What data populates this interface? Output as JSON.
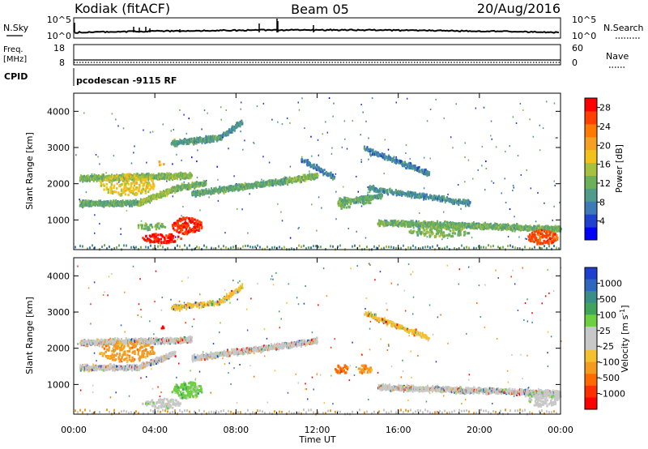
{
  "header": {
    "station": "Kodiak (fitACF)",
    "beam": "Beam 05",
    "date": "20/Aug/2016"
  },
  "top_panels": {
    "nsky_label": "N.Sky",
    "nsearch_label": "N.Search",
    "noise_ticks": [
      "10^5",
      "10^0"
    ],
    "freq_label_line1": "Freq.",
    "freq_label_line2": "[MHz]",
    "freq_ticks": [
      "18",
      "8"
    ],
    "nave_label": "Nave",
    "nave_ticks": [
      "60",
      "0"
    ],
    "cpid_label": "CPID",
    "cpid_text": "pcodescan -9115 RF"
  },
  "chart_data": [
    {
      "type": "heatmap",
      "title": "",
      "xlabel": "",
      "ylabel": "Slant Range [km]",
      "xlim": [
        0,
        24
      ],
      "ylim": [
        180,
        4500
      ],
      "x_ticks": [
        "00:00",
        "04:00",
        "08:00",
        "12:00",
        "16:00",
        "20:00",
        "00:00"
      ],
      "y_ticks": [
        "1000",
        "2000",
        "3000",
        "4000"
      ],
      "colorbar": {
        "label": "Power [dB]",
        "ticks": [
          "4",
          "8",
          "12",
          "16",
          "20",
          "24",
          "28"
        ],
        "range": [
          0,
          30
        ],
        "colors": [
          "#0000ff",
          "#2040d0",
          "#3e7ab8",
          "#4f9b8c",
          "#6cb05a",
          "#a8c040",
          "#f2c21a",
          "#f5a020",
          "#ff7a00",
          "#ff4000",
          "#ff0000"
        ]
      },
      "features": [
        {
          "t": 0.3,
          "t2": 5.8,
          "r": 2180,
          "r2": 2250,
          "val": 13,
          "d": 0.75
        },
        {
          "t": 5.8,
          "t2": 10.5,
          "r": 1750,
          "r2": 2120,
          "val": 11,
          "d": 0.65
        },
        {
          "t": 10.5,
          "t2": 12.0,
          "r": 2100,
          "r2": 2250,
          "val": 13,
          "d": 0.7
        },
        {
          "t": 0.3,
          "t2": 3.2,
          "r": 1480,
          "r2": 1500,
          "val": 11,
          "d": 0.7
        },
        {
          "t": 3.2,
          "t2": 5.0,
          "r": 1500,
          "r2": 1900,
          "val": 14,
          "d": 0.75
        },
        {
          "t": 5.0,
          "t2": 6.5,
          "r": 1900,
          "r2": 2050,
          "val": 12,
          "d": 0.7
        },
        {
          "t": 4.8,
          "t2": 7.2,
          "r": 3150,
          "r2": 3300,
          "val": 10,
          "d": 0.6
        },
        {
          "t": 7.2,
          "t2": 8.3,
          "r": 3300,
          "r2": 3750,
          "val": 9,
          "d": 0.55
        },
        {
          "t": 13.0,
          "t2": 15.2,
          "r": 1500,
          "r2": 1700,
          "val": 11,
          "d": 0.55
        },
        {
          "t": 14.5,
          "t2": 19.5,
          "r": 1900,
          "r2": 1500,
          "val": 9,
          "d": 0.35
        },
        {
          "t": 14.3,
          "t2": 17.5,
          "r": 3000,
          "r2": 2300,
          "val": 8,
          "d": 0.35
        },
        {
          "t": 15.0,
          "t2": 24.0,
          "r": 950,
          "r2": 780,
          "val": 12,
          "d": 0.6
        },
        {
          "t": 11.2,
          "t2": 12.8,
          "r": 2700,
          "r2": 2200,
          "val": 8,
          "d": 0.35
        }
      ],
      "patches": [
        {
          "t": 5.55,
          "r": 870,
          "dt": 0.75,
          "dr": 230,
          "val": 27,
          "d": 0.95
        },
        {
          "t": 4.3,
          "r": 520,
          "dt": 0.95,
          "dr": 130,
          "val": 28,
          "d": 0.9
        },
        {
          "t": 3.8,
          "r": 850,
          "dt": 0.7,
          "dr": 100,
          "val": 12,
          "d": 0.7
        },
        {
          "t": 13.3,
          "r": 1500,
          "dt": 0.35,
          "dr": 170,
          "val": 13,
          "d": 0.75
        },
        {
          "t": 14.3,
          "r": 1580,
          "dt": 0.35,
          "dr": 120,
          "val": 12,
          "d": 0.7
        },
        {
          "t": 23.1,
          "r": 550,
          "dt": 0.75,
          "dr": 200,
          "val": 26,
          "d": 0.95
        },
        {
          "t": 18.0,
          "r": 700,
          "dt": 1.5,
          "dr": 150,
          "val": 13,
          "d": 0.65
        },
        {
          "t": 2.6,
          "r": 2000,
          "dt": 1.4,
          "dr": 300,
          "val": 17,
          "d": 0.55
        },
        {
          "t": 4.3,
          "r": 2600,
          "dt": 0.15,
          "dr": 70,
          "val": 20,
          "d": 0.8
        }
      ]
    },
    {
      "type": "heatmap",
      "title": "",
      "xlabel": "Time UT",
      "ylabel": "Slant Range [km]",
      "xlim": [
        0,
        24
      ],
      "ylim": [
        180,
        4500
      ],
      "x_ticks": [
        "00:00",
        "04:00",
        "08:00",
        "12:00",
        "16:00",
        "20:00",
        "00:00"
      ],
      "y_ticks": [
        "1000",
        "2000",
        "3000",
        "4000"
      ],
      "colorbar": {
        "label": "Velocity [m s^-1]",
        "ticks": [
          "1000",
          "500",
          "100",
          "25",
          "-25",
          "-100",
          "-500",
          "-1000"
        ],
        "colors": [
          "#1f3fcf",
          "#2e66c0",
          "#3a8e88",
          "#3ea55a",
          "#6cd040",
          "#c8c8c8",
          "#c8c8c8",
          "#f5c030",
          "#f59a20",
          "#ff6a00",
          "#ff3000",
          "#ff0000"
        ]
      },
      "features": [
        {
          "t": 0.3,
          "t2": 5.8,
          "r": 2180,
          "r2": 2250,
          "val": 5,
          "d": 0.65
        },
        {
          "t": 5.8,
          "t2": 10.5,
          "r": 1750,
          "r2": 2120,
          "val": 5,
          "d": 0.55
        },
        {
          "t": 10.5,
          "t2": 12.0,
          "r": 2100,
          "r2": 2250,
          "val": 5,
          "d": 0.6
        },
        {
          "t": 0.3,
          "t2": 3.2,
          "r": 1480,
          "r2": 1500,
          "val": 5,
          "d": 0.55
        },
        {
          "t": 3.2,
          "t2": 5.0,
          "r": 1500,
          "r2": 1900,
          "val": 6,
          "d": 0.55
        },
        {
          "t": 4.8,
          "t2": 7.2,
          "r": 3150,
          "r2": 3300,
          "val": 7,
          "d": 0.35
        },
        {
          "t": 7.2,
          "t2": 8.3,
          "r": 3300,
          "r2": 3750,
          "val": 7,
          "d": 0.35
        },
        {
          "t": 15.0,
          "t2": 24.0,
          "r": 950,
          "r2": 780,
          "val": 5,
          "d": 0.55
        },
        {
          "t": 14.3,
          "t2": 17.5,
          "r": 3000,
          "r2": 2300,
          "val": 7,
          "d": 0.25
        }
      ],
      "patches": [
        {
          "t": 5.55,
          "r": 870,
          "dt": 0.75,
          "dr": 230,
          "val": 4,
          "d": 0.95
        },
        {
          "t": 4.3,
          "r": 500,
          "dt": 0.95,
          "dr": 140,
          "val": 5,
          "d": 0.8
        },
        {
          "t": 13.2,
          "r": 1450,
          "dt": 0.35,
          "dr": 130,
          "val": 9,
          "d": 0.85
        },
        {
          "t": 14.3,
          "r": 1450,
          "dt": 0.4,
          "dr": 110,
          "val": 8,
          "d": 0.75
        },
        {
          "t": 23.1,
          "r": 650,
          "dt": 0.8,
          "dr": 230,
          "val": 5,
          "d": 0.8
        },
        {
          "t": 2.6,
          "r": 1950,
          "dt": 1.4,
          "dr": 300,
          "val": 8,
          "d": 0.45
        },
        {
          "t": 4.3,
          "r": 2600,
          "dt": 0.1,
          "dr": 60,
          "val": 11,
          "d": 0.85
        }
      ]
    }
  ]
}
